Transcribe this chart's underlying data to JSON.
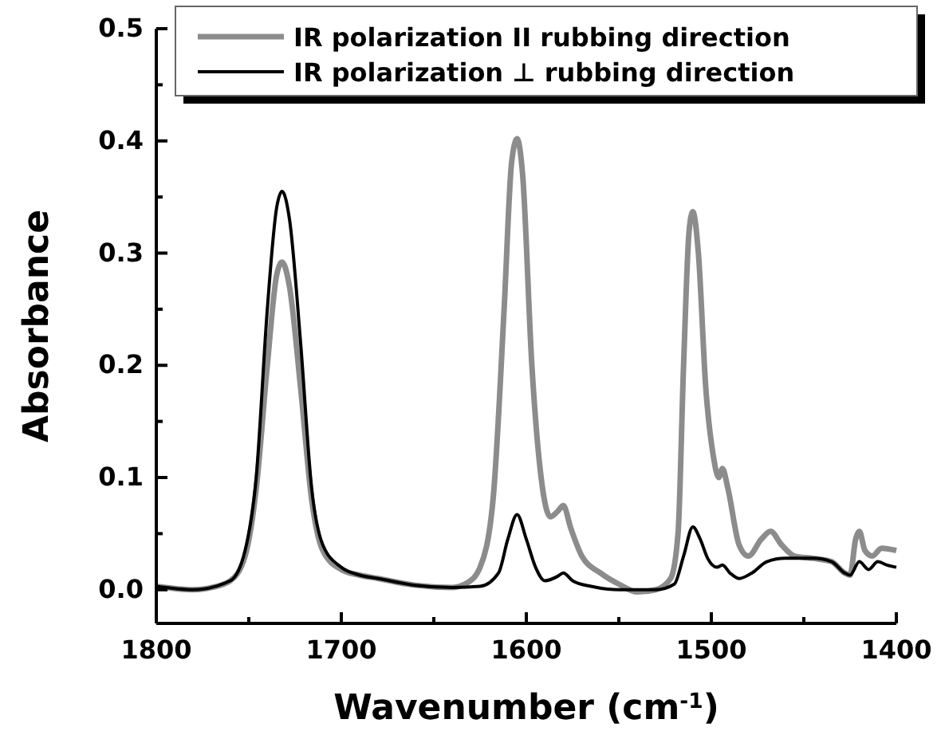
{
  "chart_data": {
    "type": "line",
    "xlabel": "Wavenumber (cm$^{-1}$)",
    "ylabel": "Absorbance",
    "xlim": [
      1800,
      1400
    ],
    "ylim": [
      -0.03,
      0.5
    ],
    "xticks": [
      1800,
      {
        "value": 1750,
        "label": null
      },
      1700,
      {
        "value": 1650,
        "label": null
      },
      1600,
      {
        "value": 1550,
        "label": null
      },
      1500,
      {
        "value": 1450,
        "label": null
      },
      1400
    ],
    "yticks": [
      {
        "value": 0,
        "label": "0.0"
      },
      {
        "value": 0.05,
        "label": null
      },
      0.1,
      {
        "value": 0.15,
        "label": null
      },
      0.2,
      {
        "value": 0.25,
        "label": null
      },
      0.3,
      {
        "value": 0.35,
        "label": null
      },
      0.4,
      {
        "value": 0.45,
        "label": null
      },
      0.5
    ],
    "legend": "top",
    "grid": false,
    "marker": "none",
    "line_style": "solid",
    "series": [
      {
        "name": "IR polarization II rubbing direction",
        "color": "#8c8c8c",
        "x": [
          1800,
          1780,
          1770,
          1760,
          1752,
          1746,
          1740,
          1735,
          1732,
          1728,
          1722,
          1716,
          1710,
          1700,
          1690,
          1680,
          1660,
          1640,
          1632,
          1625,
          1618,
          1612,
          1608,
          1605,
          1602,
          1597,
          1592,
          1587,
          1583,
          1580,
          1576,
          1570,
          1560,
          1550,
          1540,
          1530,
          1522,
          1518,
          1515,
          1512,
          1510,
          1507,
          1503,
          1499,
          1496,
          1494,
          1491,
          1485,
          1480,
          1473,
          1468,
          1462,
          1455,
          1445,
          1435,
          1428,
          1425,
          1422,
          1420,
          1417,
          1413,
          1408,
          1400
        ],
        "values": [
          0.003,
          0,
          0.002,
          0.008,
          0.03,
          0.09,
          0.2,
          0.28,
          0.292,
          0.27,
          0.18,
          0.08,
          0.035,
          0.018,
          0.013,
          0.01,
          0.004,
          0.002,
          0.006,
          0.02,
          0.08,
          0.25,
          0.38,
          0.402,
          0.37,
          0.2,
          0.1,
          0.065,
          0.07,
          0.075,
          0.055,
          0.03,
          0.015,
          0.005,
          -0.002,
          0,
          0.01,
          0.05,
          0.2,
          0.32,
          0.337,
          0.3,
          0.18,
          0.12,
          0.1,
          0.108,
          0.09,
          0.04,
          0.03,
          0.045,
          0.052,
          0.04,
          0.03,
          0.028,
          0.025,
          0.015,
          0.013,
          0.045,
          0.052,
          0.035,
          0.03,
          0.037,
          0.035
        ]
      },
      {
        "name": "IR polarization ⊥ rubbing direction",
        "color": "#000000",
        "x": [
          1800,
          1780,
          1760,
          1752,
          1746,
          1740,
          1735,
          1732,
          1728,
          1722,
          1716,
          1710,
          1700,
          1690,
          1680,
          1660,
          1640,
          1625,
          1615,
          1610,
          1605,
          1600,
          1595,
          1590,
          1583,
          1580,
          1575,
          1565,
          1550,
          1530,
          1520,
          1515,
          1510,
          1506,
          1502,
          1497,
          1494,
          1490,
          1485,
          1478,
          1470,
          1460,
          1445,
          1435,
          1428,
          1425,
          1420,
          1415,
          1410,
          1405,
          1400
        ],
        "values": [
          0.003,
          0,
          0.008,
          0.035,
          0.1,
          0.25,
          0.34,
          0.355,
          0.33,
          0.22,
          0.09,
          0.04,
          0.02,
          0.013,
          0.01,
          0.004,
          0.002,
          0.003,
          0.015,
          0.045,
          0.067,
          0.045,
          0.02,
          0.008,
          0.012,
          0.015,
          0.008,
          0.003,
          0,
          0,
          0.005,
          0.03,
          0.056,
          0.045,
          0.028,
          0.02,
          0.022,
          0.015,
          0.01,
          0.015,
          0.025,
          0.028,
          0.028,
          0.025,
          0.015,
          0.013,
          0.025,
          0.018,
          0.025,
          0.022,
          0.02
        ]
      }
    ]
  }
}
